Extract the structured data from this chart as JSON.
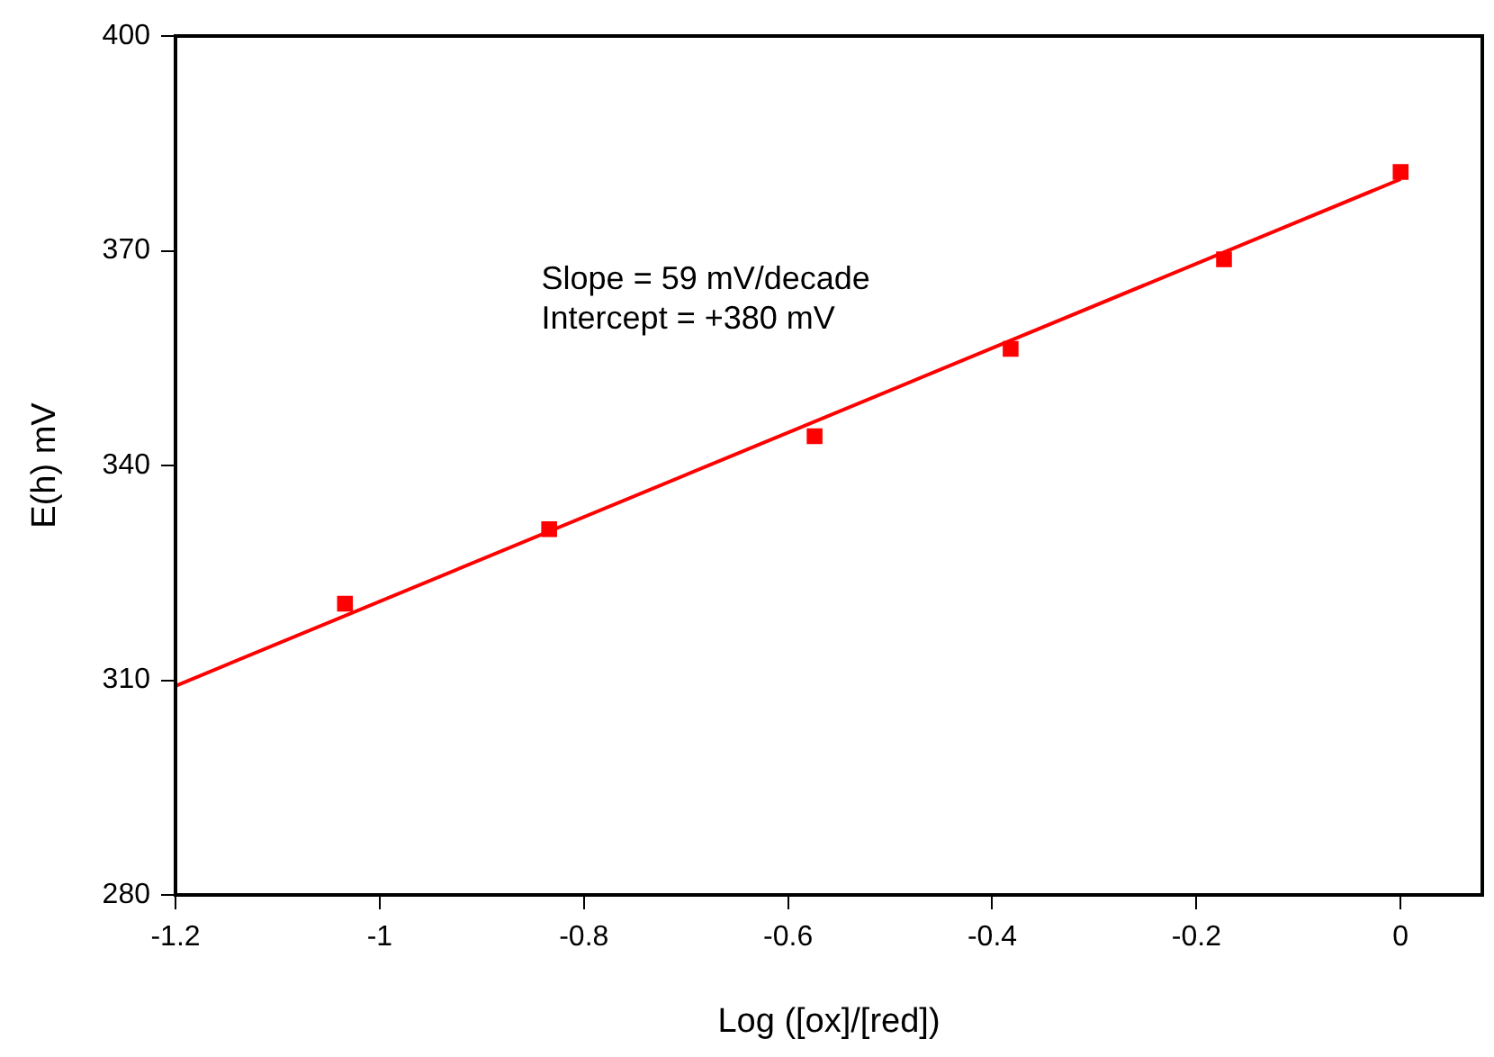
{
  "chart_data": {
    "type": "scatter",
    "xlabel": "Log ([ox]/[red])",
    "ylabel": "E(h) mV",
    "xlim": [
      -1.2,
      0.08
    ],
    "xticks": [
      -1.2,
      -1,
      -0.8,
      -0.6,
      -0.4,
      -0.2,
      0
    ],
    "ylim": [
      280,
      400
    ],
    "yticks": [
      280,
      310,
      340,
      370,
      400
    ],
    "grid": false,
    "legend": false,
    "annotations": [
      "Slope = 59 mV/decade",
      "Intercept = +380 mV"
    ],
    "series": [
      {
        "color": "#ff0000",
        "marker": "square",
        "x": [
          -1.034,
          -0.834,
          -0.574,
          -0.382,
          -0.173,
          0.0
        ],
        "values": [
          320.7,
          331.1,
          344.1,
          356.3,
          368.8,
          381.0
        ]
      },
      {
        "type": "line",
        "color": "#ff0000",
        "marker": "none",
        "line_style": "solid",
        "x": [
          -1.2,
          0
        ],
        "values": [
          309.2,
          380.0
        ]
      }
    ]
  }
}
